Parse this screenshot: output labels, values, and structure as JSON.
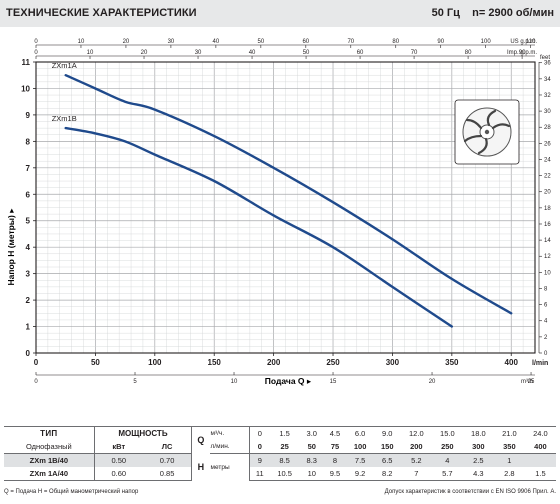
{
  "header": {
    "title": "ТЕХНИЧЕСКИЕ ХАРАКТЕРИСТИКИ",
    "frequency": "50 Гц",
    "speed": "n= 2900 об/мин"
  },
  "chart_data": {
    "type": "line",
    "xlabel": "Подача Q",
    "ylabel": "Напор H (метры)",
    "xlim": [
      0,
      420
    ],
    "ylim": [
      0,
      11
    ],
    "x_unit": "l/min",
    "x_ticks": [
      0,
      50,
      100,
      150,
      200,
      250,
      300,
      350,
      400
    ],
    "y_ticks": [
      0,
      1,
      2,
      3,
      4,
      5,
      6,
      7,
      8,
      9,
      10,
      11
    ],
    "grid": true,
    "axes": {
      "us_gpm": {
        "unit": "US g.p.m.",
        "ticks": [
          0,
          10,
          20,
          30,
          40,
          50,
          60,
          70,
          80,
          90,
          100,
          110
        ]
      },
      "imp_gpm": {
        "unit": "Imp. g.p.m.",
        "ticks": [
          0,
          10,
          20,
          30,
          40,
          50,
          60,
          70,
          80,
          90
        ]
      },
      "m3h": {
        "unit": "m³/h",
        "ticks": [
          0,
          5,
          10,
          15,
          20,
          25
        ]
      },
      "feet": {
        "unit": "feet",
        "ticks": [
          0,
          2,
          4,
          6,
          8,
          10,
          12,
          14,
          16,
          18,
          20,
          22,
          24,
          26,
          28,
          30,
          32,
          34,
          36
        ]
      }
    },
    "series": [
      {
        "name": "ZXm1A",
        "color": "#1f4a8c",
        "x": [
          25,
          50,
          75,
          100,
          150,
          200,
          250,
          300,
          350,
          400
        ],
        "y": [
          10.5,
          10.0,
          9.5,
          9.2,
          8.2,
          7.0,
          5.7,
          4.3,
          2.8,
          1.5
        ]
      },
      {
        "name": "ZXm1B",
        "color": "#1f4a8c",
        "x": [
          25,
          50,
          75,
          100,
          150,
          200,
          250,
          300,
          350
        ],
        "y": [
          8.5,
          8.3,
          8.0,
          7.5,
          6.5,
          5.2,
          4.0,
          2.5,
          1.0
        ]
      }
    ]
  },
  "table": {
    "type_header": "ТИП",
    "phase_label": "Однофазный",
    "power_header": "МОЩНОСТЬ",
    "power_units": [
      "кВт",
      "ЛС"
    ],
    "q_symbol": "Q",
    "q_units": [
      "м³/ч.",
      "л/мин."
    ],
    "flow_m3h": [
      "0",
      "1.5",
      "3.0",
      "4.5",
      "6.0",
      "9.0",
      "12.0",
      "15.0",
      "18.0",
      "21.0",
      "24.0"
    ],
    "flow_lmin": [
      "0",
      "25",
      "50",
      "75",
      "100",
      "150",
      "200",
      "250",
      "300",
      "350",
      "400"
    ],
    "h_symbol": "H",
    "h_unit": "метры",
    "rows": [
      {
        "model": "ZXm 1B/40",
        "kw": "0.50",
        "hp": "0.70",
        "heads": [
          "9",
          "8.5",
          "8.3",
          "8",
          "7.5",
          "6.5",
          "5.2",
          "4",
          "2.5",
          "1",
          ""
        ]
      },
      {
        "model": "ZXm 1A/40",
        "kw": "0.60",
        "hp": "0.85",
        "heads": [
          "11",
          "10.5",
          "10",
          "9.5",
          "9.2",
          "8.2",
          "7",
          "5.7",
          "4.3",
          "2.8",
          "1.5"
        ]
      }
    ]
  },
  "footer": {
    "legend": "Q = Подача  H = Общий манометрический напор",
    "standard": "Допуск характеристик в соответствии с EN ISO 9906 Прил. A."
  }
}
